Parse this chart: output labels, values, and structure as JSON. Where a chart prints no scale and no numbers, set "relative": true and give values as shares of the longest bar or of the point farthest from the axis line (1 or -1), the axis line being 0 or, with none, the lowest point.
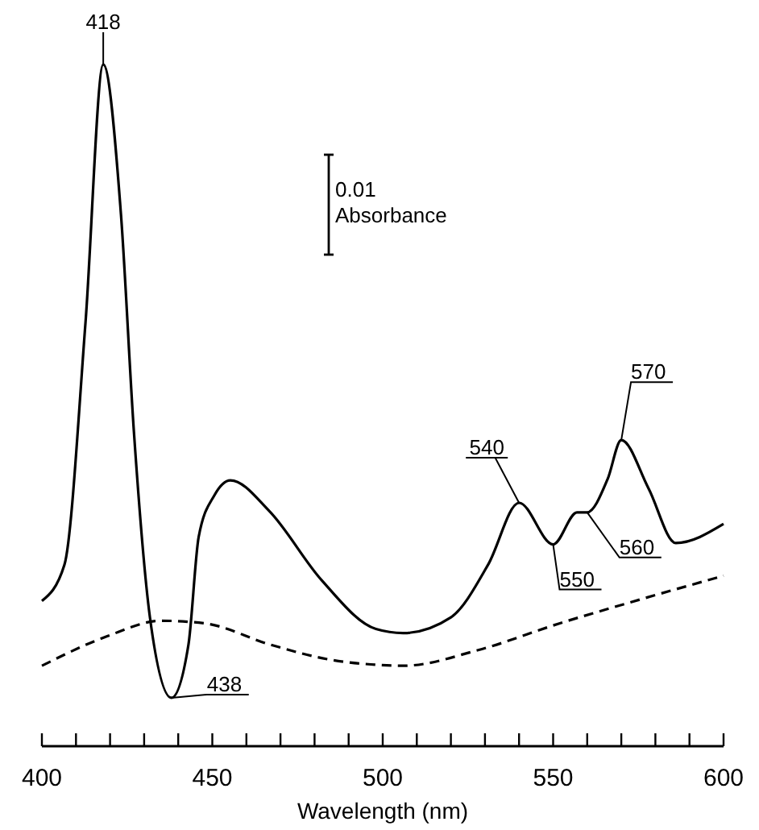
{
  "chart_data": {
    "type": "line",
    "relative": true,
    "xlabel": "Wavelength (nm)",
    "xlim": [
      400,
      600
    ],
    "xticks": [
      400,
      {
        "value": 410,
        "label": null
      },
      {
        "value": 420,
        "label": null
      },
      {
        "value": 430,
        "label": null
      },
      {
        "value": 440,
        "label": null
      },
      450,
      {
        "value": 460,
        "label": null
      },
      {
        "value": 470,
        "label": null
      },
      {
        "value": 480,
        "label": null
      },
      {
        "value": 490,
        "label": null
      },
      500,
      {
        "value": 510,
        "label": null
      },
      {
        "value": 520,
        "label": null
      },
      {
        "value": 530,
        "label": null
      },
      {
        "value": 540,
        "label": null
      },
      550,
      {
        "value": 560,
        "label": null
      },
      {
        "value": 570,
        "label": null
      },
      {
        "value": 580,
        "label": null
      },
      {
        "value": 590,
        "label": null
      },
      600
    ],
    "tick_labels": "x",
    "marker": "none",
    "series": [
      {
        "color": "#000000",
        "line_style": "solid",
        "x": [
          400,
          406.6,
          412.8,
          418,
          423.2,
          427,
          431.7,
          438,
          443,
          446,
          450.6,
          455.3,
          466.7,
          482,
          498,
          506,
          520,
          531,
          540,
          550,
          557,
          560,
          566,
          570,
          578,
          586,
          600
        ],
        "values": [
          0.213,
          0.266,
          0.622,
          1,
          0.78,
          0.461,
          0.189,
          0.071,
          0.149,
          0.307,
          0.368,
          0.39,
          0.345,
          0.244,
          0.172,
          0.166,
          0.189,
          0.267,
          0.357,
          0.296,
          0.343,
          0.343,
          0.392,
          0.449,
          0.378,
          0.298,
          0.326
        ]
      },
      {
        "color": "#000000",
        "line_style": "dashed",
        "x": [
          400,
          419,
          435,
          448,
          467,
          485.6,
          496.5,
          506,
          528,
          551.8,
          575.4,
          600
        ],
        "values": [
          0.118,
          0.161,
          0.184,
          0.18,
          0.149,
          0.126,
          0.12,
          0.118,
          0.141,
          0.18,
          0.215,
          0.25
        ]
      }
    ],
    "annotations": [
      {
        "text": "418",
        "x": 418,
        "y": 1
      },
      {
        "text": "438",
        "x": 438,
        "y": 0.071
      },
      {
        "text": "540",
        "x": 540,
        "y": 0.357
      },
      {
        "text": "550",
        "x": 550,
        "y": 0.296
      },
      {
        "text": "560",
        "x": 560,
        "y": 0.343
      },
      {
        "text": "570",
        "x": 570,
        "y": 0.449
      },
      "0.01 Absorbance"
    ]
  }
}
